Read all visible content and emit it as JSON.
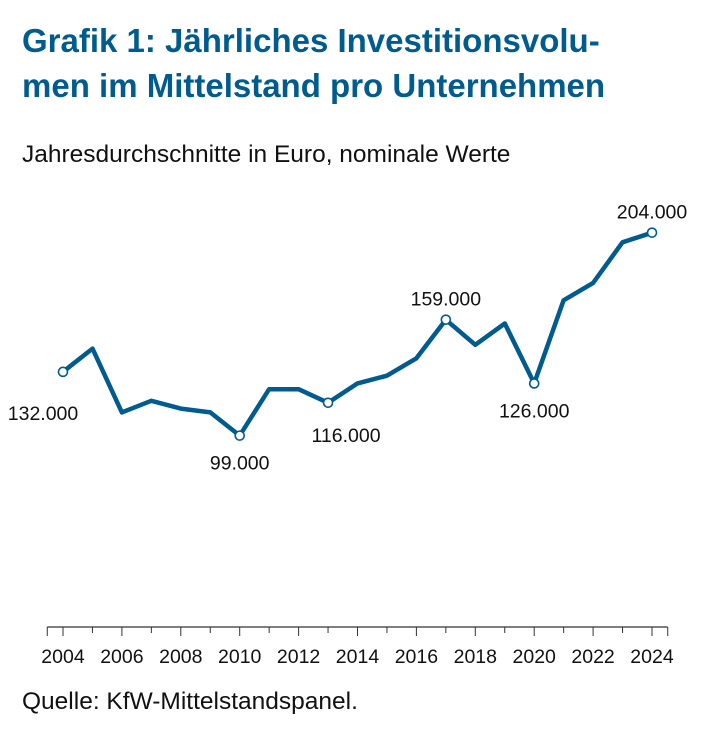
{
  "title": "Grafik 1: Jährliches Investitionsvolu-men im Mittelstand pro Unternehmen",
  "title_lines": [
    "Grafik 1: Jährliches Investitionsvolu-",
    "men im Mittelstand pro Unternehmen"
  ],
  "subtitle": "Jahresdurchschnitte in Euro, nominale Werte",
  "source": "Quelle: KfW-Mittelstandspanel.",
  "colors": {
    "title": "#005b8e",
    "line": "#005b8e"
  },
  "chart_data": {
    "type": "line",
    "title": "Grafik 1: Jährliches Investitionsvolumen im Mittelstand pro Unternehmen",
    "subtitle": "Jahresdurchschnitte in Euro, nominale Werte",
    "xlabel": "",
    "ylabel": "",
    "x": [
      2004,
      2005,
      2006,
      2007,
      2008,
      2009,
      2010,
      2011,
      2012,
      2013,
      2014,
      2015,
      2016,
      2017,
      2018,
      2019,
      2020,
      2021,
      2022,
      2023,
      2024
    ],
    "values": [
      132000,
      144000,
      111000,
      117000,
      113000,
      111000,
      99000,
      123000,
      123000,
      116000,
      126000,
      130000,
      139000,
      159000,
      146000,
      157000,
      126000,
      169000,
      178000,
      199000,
      204000
    ],
    "xticks": [
      "2004",
      "2006",
      "2008",
      "2010",
      "2012",
      "2014",
      "2016",
      "2018",
      "2020",
      "2022",
      "2024"
    ],
    "xlim": [
      2003.5,
      2024.5
    ],
    "ylim": [
      0,
      210000
    ],
    "y_axis_shown": false,
    "grid": false,
    "annotations": [
      {
        "x": 2004,
        "label": "132.000",
        "position": "below-left"
      },
      {
        "x": 2010,
        "label": "99.000",
        "position": "below"
      },
      {
        "x": 2013,
        "label": "116.000",
        "position": "below-right"
      },
      {
        "x": 2017,
        "label": "159.000",
        "position": "above"
      },
      {
        "x": 2020,
        "label": "126.000",
        "position": "below"
      },
      {
        "x": 2024,
        "label": "204.000",
        "position": "above"
      }
    ]
  }
}
